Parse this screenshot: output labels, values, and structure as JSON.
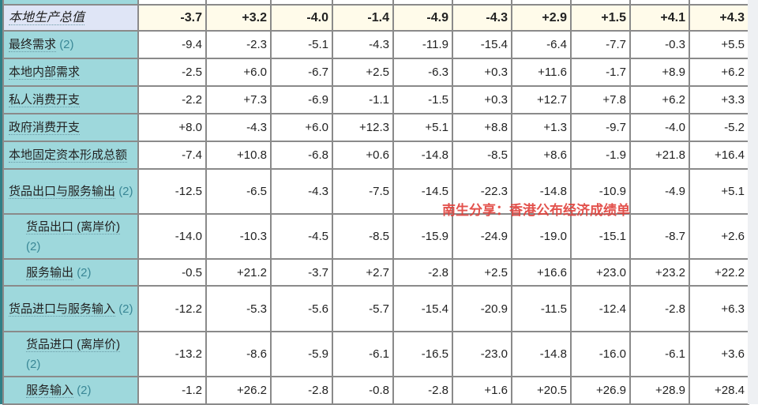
{
  "header_row": {
    "label": "本地生产总值",
    "values": [
      "-3.7",
      "+3.2",
      "-4.0",
      "-1.4",
      "-4.9",
      "-4.3",
      "+2.9",
      "+1.5",
      "+4.1",
      "+4.3"
    ]
  },
  "rows": [
    {
      "label": "最终需求",
      "note": "(2)",
      "indent": false,
      "values": [
        "-9.4",
        "-2.3",
        "-5.1",
        "-4.3",
        "-11.9",
        "-15.4",
        "-6.4",
        "-7.7",
        "-0.3",
        "+5.5"
      ]
    },
    {
      "label": "本地内部需求",
      "note": "",
      "indent": false,
      "values": [
        "-2.5",
        "+6.0",
        "-6.7",
        "+2.5",
        "-6.3",
        "+0.3",
        "+11.6",
        "-1.7",
        "+8.9",
        "+6.2"
      ]
    },
    {
      "label": "私人消费开支",
      "note": "",
      "indent": false,
      "values": [
        "-2.2",
        "+7.3",
        "-6.9",
        "-1.1",
        "-1.5",
        "+0.3",
        "+12.7",
        "+7.8",
        "+6.2",
        "+3.3"
      ]
    },
    {
      "label": "政府消费开支",
      "note": "",
      "indent": false,
      "values": [
        "+8.0",
        "-4.3",
        "+6.0",
        "+12.3",
        "+5.1",
        "+8.8",
        "+1.3",
        "-9.7",
        "-4.0",
        "-5.2"
      ]
    },
    {
      "label": "本地固定资本形成总额",
      "note": "",
      "indent": false,
      "values": [
        "-7.4",
        "+10.8",
        "-6.8",
        "+0.6",
        "-14.8",
        "-8.5",
        "+8.6",
        "-1.9",
        "+21.8",
        "+16.4"
      ]
    },
    {
      "label": "货品出口与服务输出",
      "note": "(2)",
      "indent": false,
      "values": [
        "-12.5",
        "-6.5",
        "-4.3",
        "-7.5",
        "-14.5",
        "-22.3",
        "-14.8",
        "-10.9",
        "-4.9",
        "+5.1"
      ]
    },
    {
      "label": "货品出口 (离岸价)",
      "note": "(2)",
      "indent": true,
      "values": [
        "-14.0",
        "-10.3",
        "-4.5",
        "-8.5",
        "-15.9",
        "-24.9",
        "-19.0",
        "-15.1",
        "-8.7",
        "+2.6"
      ]
    },
    {
      "label": "服务输出",
      "note": "(2)",
      "indent": true,
      "values": [
        "-0.5",
        "+21.2",
        "-3.7",
        "+2.7",
        "-2.8",
        "+2.5",
        "+16.6",
        "+23.0",
        "+23.2",
        "+22.2"
      ]
    },
    {
      "label": "货品进口与服务输入",
      "note": "(2)",
      "indent": false,
      "values": [
        "-12.2",
        "-5.3",
        "-5.6",
        "-5.7",
        "-15.4",
        "-20.9",
        "-11.5",
        "-12.4",
        "-2.8",
        "+6.3"
      ]
    },
    {
      "label": "货品进口 (离岸价)",
      "note": "(2)",
      "indent": true,
      "values": [
        "-13.2",
        "-8.6",
        "-5.9",
        "-6.1",
        "-16.5",
        "-23.0",
        "-14.8",
        "-16.0",
        "-6.1",
        "+3.6"
      ]
    },
    {
      "label": "服务输入",
      "note": "(2)",
      "indent": true,
      "values": [
        "-1.2",
        "+26.2",
        "-2.8",
        "-0.8",
        "-2.8",
        "+1.6",
        "+20.5",
        "+26.9",
        "+28.9",
        "+28.4"
      ]
    }
  ],
  "watermark": "南生分享：香港公布经济成绩单",
  "colors": {
    "label_bg": "#9ed8dc",
    "header_label_bg": "#dfe5f6",
    "header_value_bg": "#fffbea",
    "watermark": "#e0403a",
    "footnote": "#3a8796"
  }
}
